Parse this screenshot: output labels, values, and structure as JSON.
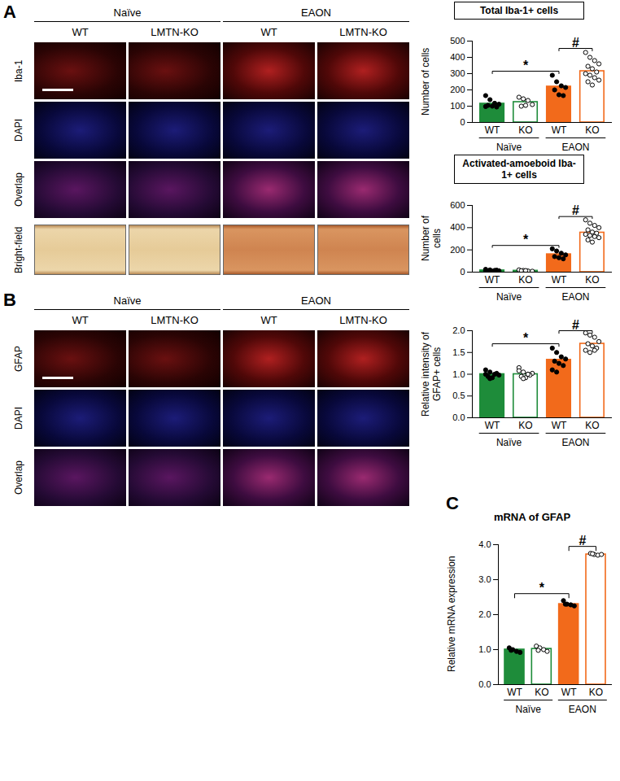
{
  "panels": [
    {
      "label": "A",
      "image_grid": {
        "groups": [
          {
            "label": "Naïve",
            "columns": [
              "WT",
              "LMTN-KO"
            ]
          },
          {
            "label": "EAON",
            "columns": [
              "WT",
              "LMTN-KO"
            ]
          }
        ],
        "rows": [
          "Iba-1",
          "DAPI",
          "Overlap",
          "Bright-field"
        ]
      }
    },
    {
      "label": "B",
      "image_grid": {
        "groups": [
          {
            "label": "Naïve",
            "columns": [
              "WT",
              "LMTN-KO"
            ]
          },
          {
            "label": "EAON",
            "columns": [
              "WT",
              "LMTN-KO"
            ]
          }
        ],
        "rows": [
          "GFAP",
          "DAPI",
          "Overlap"
        ]
      }
    },
    {
      "label": "C"
    }
  ],
  "chart_data": [
    {
      "type": "bar",
      "title": "Total Iba-1+ cells",
      "y_label": "Number of cells",
      "categories": [
        "WT",
        "KO",
        "WT",
        "KO"
      ],
      "groups": [
        {
          "label": "Naïve",
          "span": [
            0,
            1
          ]
        },
        {
          "label": "EAON",
          "span": [
            2,
            3
          ]
        }
      ],
      "values": [
        115,
        125,
        220,
        315
      ],
      "points": [
        [
          165,
          140,
          118,
          112,
          105,
          100,
          95,
          98
        ],
        [
          155,
          145,
          135,
          110,
          100,
          105
        ],
        [
          290,
          250,
          225,
          215,
          200,
          170,
          165
        ],
        [
          430,
          400,
          380,
          360,
          345,
          330,
          310,
          300,
          290,
          275,
          260,
          250,
          230
        ]
      ],
      "colors": [
        "#1e8c3a",
        "#1e8c3a",
        "#f26a1b",
        "#f26a1b"
      ],
      "ylim": [
        0,
        500
      ],
      "yticks": [
        0,
        100,
        200,
        300,
        400,
        500
      ],
      "annotations": [
        {
          "from": 0,
          "to": 2,
          "label": "*"
        },
        {
          "from": 2,
          "to": 3,
          "label": "#"
        }
      ]
    },
    {
      "type": "bar",
      "title": "Activated-amoeboid Iba-1+ cells",
      "y_label": "Number of cells",
      "categories": [
        "WT",
        "KO",
        "WT",
        "KO"
      ],
      "groups": [
        {
          "label": "Naïve",
          "span": [
            0,
            1
          ]
        },
        {
          "label": "EAON",
          "span": [
            2,
            3
          ]
        }
      ],
      "values": [
        15,
        12,
        160,
        355
      ],
      "points": [
        [
          25,
          20,
          15,
          12,
          10,
          8,
          18,
          14
        ],
        [
          20,
          15,
          10,
          8,
          12,
          14
        ],
        [
          210,
          190,
          170,
          155,
          140,
          130,
          120
        ],
        [
          470,
          440,
          420,
          400,
          380,
          360,
          350,
          340,
          330,
          320,
          310,
          290,
          270
        ]
      ],
      "colors": [
        "#1e8c3a",
        "#1e8c3a",
        "#f26a1b",
        "#f26a1b"
      ],
      "ylim": [
        0,
        600
      ],
      "yticks": [
        0,
        200,
        400,
        600
      ],
      "annotations": [
        {
          "from": 0,
          "to": 2,
          "label": "*"
        },
        {
          "from": 2,
          "to": 3,
          "label": "#"
        }
      ]
    },
    {
      "type": "bar",
      "y_label": "Relative intensity of GFAP+ cells",
      "categories": [
        "WT",
        "KO",
        "WT",
        "KO"
      ],
      "groups": [
        {
          "label": "Naïve",
          "span": [
            0,
            1
          ]
        },
        {
          "label": "EAON",
          "span": [
            2,
            3
          ]
        }
      ],
      "values": [
        1.0,
        1.0,
        1.33,
        1.7
      ],
      "points": [
        [
          1.1,
          1.05,
          1.0,
          0.98,
          0.95,
          0.92,
          1.02,
          1.0,
          0.9
        ],
        [
          1.15,
          1.05,
          1.0,
          1.02,
          0.95,
          0.92,
          0.98,
          1.08,
          0.9,
          1.0
        ],
        [
          1.6,
          1.5,
          1.4,
          1.35,
          1.3,
          1.25,
          1.2,
          1.1,
          1.05
        ],
        [
          1.95,
          1.9,
          1.85,
          1.75,
          1.7,
          1.65,
          1.6,
          1.55,
          1.5,
          1.55
        ]
      ],
      "colors": [
        "#1e8c3a",
        "#1e8c3a",
        "#f26a1b",
        "#f26a1b"
      ],
      "ylim": [
        0,
        2
      ],
      "yticks": [
        {
          "value": 0,
          "label": "0.0"
        },
        {
          "value": 0.5,
          "label": "0.5"
        },
        {
          "value": 1,
          "label": "1.0"
        },
        {
          "value": 1.5,
          "label": "1.5"
        },
        {
          "value": 2,
          "label": "2.0"
        }
      ],
      "annotations": [
        {
          "from": 0,
          "to": 2,
          "label": "*"
        },
        {
          "from": 2,
          "to": 3,
          "label": "#"
        }
      ]
    },
    {
      "type": "bar",
      "title": "mRNA of GFAP",
      "y_label": "Relative mRNA expression",
      "categories": [
        "WT",
        "KO",
        "WT",
        "KO"
      ],
      "groups": [
        {
          "label": "Naïve",
          "span": [
            0,
            1
          ]
        },
        {
          "label": "EAON",
          "span": [
            2,
            3
          ]
        }
      ],
      "values": [
        1.0,
        1.02,
        2.3,
        3.72
      ],
      "points": [
        [
          1.05,
          1.0,
          0.95,
          0.92,
          0.98
        ],
        [
          1.1,
          1.05,
          1.0,
          0.95,
          0.98
        ],
        [
          2.4,
          2.3,
          2.28,
          2.25,
          2.3
        ],
        [
          3.75,
          3.72,
          3.7,
          3.72,
          3.74
        ]
      ],
      "colors": [
        "#1e8c3a",
        "#1e8c3a",
        "#f26a1b",
        "#f26a1b"
      ],
      "ylim": [
        0,
        4
      ],
      "yticks": [
        {
          "value": 0,
          "label": "0.0"
        },
        {
          "value": 1,
          "label": "1.0"
        },
        {
          "value": 2,
          "label": "2.0"
        },
        {
          "value": 3,
          "label": "3.0"
        },
        {
          "value": 4,
          "label": "4.0"
        }
      ],
      "annotations": [
        {
          "from": 0,
          "to": 2,
          "label": "*"
        },
        {
          "from": 2,
          "to": 3,
          "label": "#"
        }
      ]
    }
  ]
}
